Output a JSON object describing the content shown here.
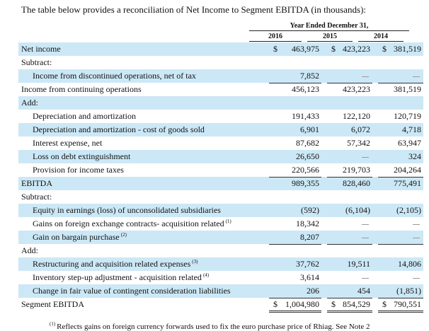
{
  "intro": "The table below provides a reconciliation of Net Income to Segment EBITDA (in thousands):",
  "header": {
    "period": "Year Ended December 31,",
    "years": [
      "2016",
      "2015",
      "2014"
    ]
  },
  "rows": [
    {
      "label": "Net income",
      "values": [
        "463,975",
        "423,223",
        "381,519"
      ],
      "dollar": true,
      "shade": true
    },
    {
      "label": "Subtract:"
    },
    {
      "label": "Income from discontinued operations, net of tax",
      "values": [
        "7,852",
        "—",
        "—"
      ],
      "indent": true,
      "shade": true,
      "underline": true
    },
    {
      "label": "Income from continuing operations",
      "values": [
        "456,123",
        "423,223",
        "381,519"
      ]
    },
    {
      "label": "Add:",
      "shade": true
    },
    {
      "label": "Depreciation and amortization",
      "values": [
        "191,433",
        "122,120",
        "120,719"
      ],
      "indent": true
    },
    {
      "label": "Depreciation and amortization - cost of goods sold",
      "values": [
        "6,901",
        "6,072",
        "4,718"
      ],
      "indent": true,
      "shade": true
    },
    {
      "label": "Interest expense, net",
      "values": [
        "87,682",
        "57,342",
        "63,947"
      ],
      "indent": true
    },
    {
      "label": "Loss on debt extinguishment",
      "values": [
        "26,650",
        "—",
        "324"
      ],
      "indent": true,
      "shade": true
    },
    {
      "label": "Provision for income taxes",
      "values": [
        "220,566",
        "219,703",
        "204,264"
      ],
      "indent": true,
      "underline": true
    },
    {
      "label": "EBITDA",
      "values": [
        "989,355",
        "828,460",
        "775,491"
      ],
      "shade": true
    },
    {
      "label": "Subtract:"
    },
    {
      "label": "Equity in earnings (loss) of unconsolidated subsidiaries",
      "values": [
        "(592)",
        "(6,104)",
        "(2,105)"
      ],
      "indent": true,
      "shade": true
    },
    {
      "label": "Gains on foreign exchange contracts- acquisition related",
      "note": "(1)",
      "values": [
        "18,342",
        "—",
        "—"
      ],
      "indent": true
    },
    {
      "label": "Gain on bargain purchase",
      "note": "(2)",
      "values": [
        "8,207",
        "—",
        "—"
      ],
      "indent": true,
      "shade": true,
      "underline": true
    },
    {
      "label": "Add:"
    },
    {
      "label": "Restructuring and acquisition related expenses",
      "note": "(3)",
      "values": [
        "37,762",
        "19,511",
        "14,806"
      ],
      "indent": true,
      "shade": true
    },
    {
      "label": "Inventory step-up adjustment - acquisition related",
      "note": "(4)",
      "values": [
        "3,614",
        "—",
        "—"
      ],
      "indent": true
    },
    {
      "label": "Change in fair value of contingent consideration liabilities",
      "values": [
        "206",
        "454",
        "(1,851)"
      ],
      "indent": true,
      "shade": true,
      "underline": true
    },
    {
      "label": "Segment EBITDA",
      "values": [
        "1,004,980",
        "854,529",
        "790,551"
      ],
      "dollar": true,
      "double": true
    }
  ],
  "currency_symbol": "$",
  "footnote": {
    "marker": "(1)",
    "text": "Reflects gains on foreign currency forwards used to fix the euro purchase price of Rhiag. See Note 2"
  }
}
